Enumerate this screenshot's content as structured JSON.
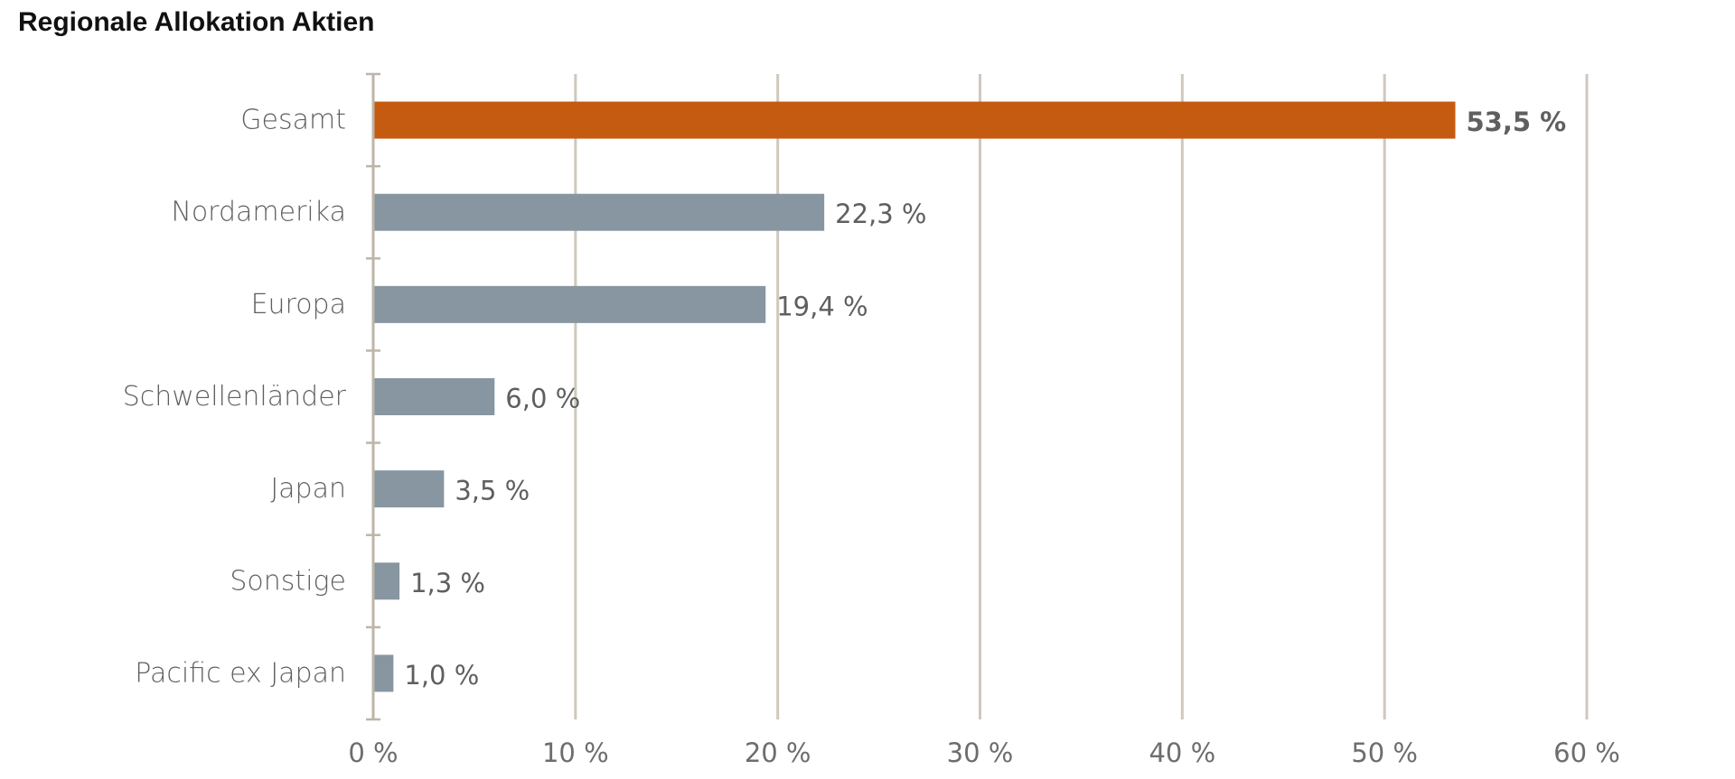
{
  "title": "Regionale Allokation Aktien",
  "colors": {
    "highlight": "#C55A11",
    "bar": "#8796A0",
    "grid": "#CFC8BC",
    "axis": "#BDB5A7"
  },
  "chart_data": {
    "type": "bar",
    "orientation": "horizontal",
    "title": "Regionale Allokation Aktien",
    "categories": [
      "Gesamt",
      "Nordamerika",
      "Europa",
      "Schwellenländer",
      "Japan",
      "Sonstige",
      "Pacific ex Japan"
    ],
    "values": [
      53.5,
      22.3,
      19.4,
      6.0,
      3.5,
      1.3,
      1.0
    ],
    "value_labels": [
      "53,5 %",
      "22,3 %",
      "19,4 %",
      "6,0 %",
      "3,5 %",
      "1,3 %",
      "1,0 %"
    ],
    "highlight_index": 0,
    "xlim": [
      0,
      60
    ],
    "xticks": [
      0,
      10,
      20,
      30,
      40,
      50,
      60
    ],
    "xtick_labels": [
      "0 %",
      "10 %",
      "20 %",
      "30 %",
      "40 %",
      "50 %",
      "60 %"
    ],
    "grid": true,
    "xlabel": "",
    "ylabel": ""
  }
}
